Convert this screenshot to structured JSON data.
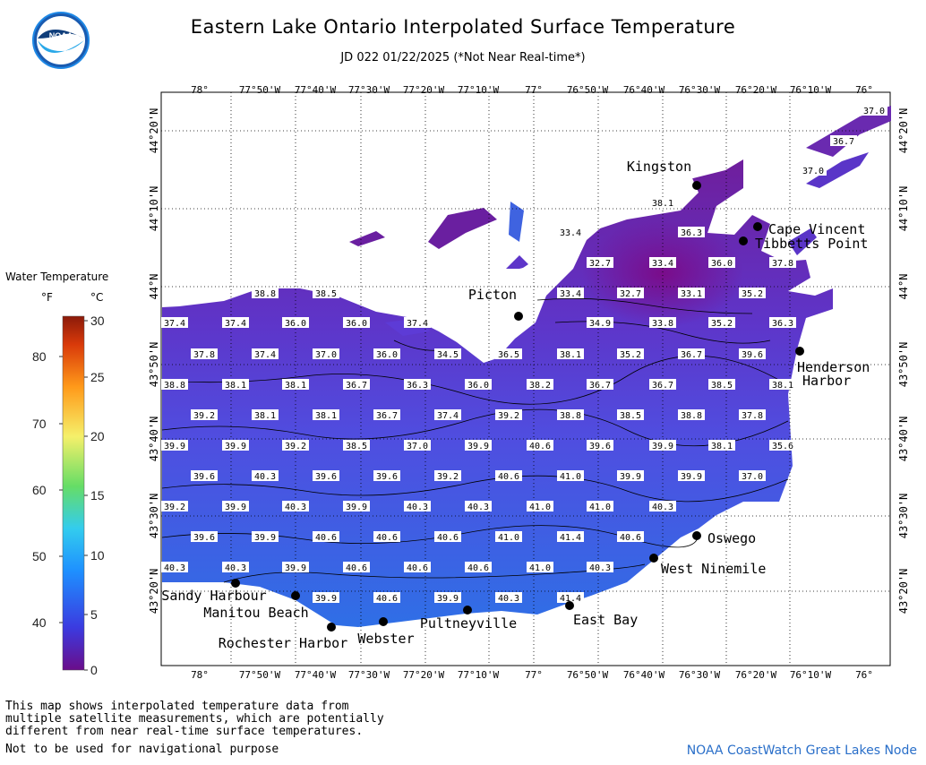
{
  "title": "Eastern Lake Ontario Interpolated Surface Temperature",
  "subtitle": "JD 022 01/22/2025 (*Not Near Real-time*)",
  "logo_text": "NOAA",
  "legend": {
    "title": "Water Temperature",
    "unit_f": "°F",
    "unit_c": "°C",
    "f_ticks": [
      "80",
      "70",
      "60",
      "50",
      "40"
    ],
    "c_ticks": [
      "30",
      "25",
      "20",
      "15",
      "10",
      "5",
      "0"
    ]
  },
  "axes": {
    "lon_labels": [
      "78°",
      "77°50'W",
      "77°40'W",
      "77°30'W",
      "77°20'W",
      "77°10'W",
      "77°",
      "76°50'W",
      "76°40'W",
      "76°30'W",
      "76°20'W",
      "76°10'W",
      "76°"
    ],
    "lat_labels": [
      "44°20'N",
      "44°10'N",
      "44°N",
      "43°50'N",
      "43°40'N",
      "43°30'N",
      "43°20'N"
    ]
  },
  "places": [
    {
      "name": "Kingston"
    },
    {
      "name": "Cape Vincent"
    },
    {
      "name": "Tibbetts Point"
    },
    {
      "name": "Picton"
    },
    {
      "name": "Henderson Harbor"
    },
    {
      "name": "Oswego"
    },
    {
      "name": "West Ninemile"
    },
    {
      "name": "East Bay"
    },
    {
      "name": "Pultneyville"
    },
    {
      "name": "Webster"
    },
    {
      "name": "Rochester Harbor"
    },
    {
      "name": "Manitou Beach"
    },
    {
      "name": "Sandy Harbour"
    }
  ],
  "temperature_labels": [
    "37.0",
    "36.7",
    "37.0",
    "38.1",
    "33.4",
    "36.3",
    "32.7",
    "33.4",
    "36.0",
    "37.8",
    "38.8",
    "38.5",
    "33.4",
    "32.7",
    "33.1",
    "35.2",
    "37.4",
    "37.4",
    "36.0",
    "36.0",
    "37.4",
    "34.9",
    "33.8",
    "35.2",
    "36.3",
    "37.8",
    "37.4",
    "37.0",
    "36.0",
    "34.5",
    "36.5",
    "38.1",
    "35.2",
    "36.7",
    "39.6",
    "38.8",
    "38.1",
    "38.1",
    "36.7",
    "36.3",
    "36.0",
    "38.2",
    "36.7",
    "36.7",
    "38.5",
    "38.1",
    "39.2",
    "38.1",
    "38.1",
    "36.7",
    "37.4",
    "39.2",
    "38.8",
    "38.5",
    "38.8",
    "37.8",
    "39.9",
    "39.9",
    "39.2",
    "38.5",
    "37.0",
    "39.9",
    "40.6",
    "39.6",
    "39.9",
    "38.1",
    "35.6",
    "39.6",
    "40.3",
    "39.6",
    "39.6",
    "39.2",
    "40.6",
    "41.0",
    "39.9",
    "39.9",
    "37.0",
    "39.2",
    "39.9",
    "40.3",
    "39.9",
    "40.3",
    "40.3",
    "41.0",
    "41.0",
    "40.3",
    "39.6",
    "39.9",
    "40.6",
    "40.6",
    "40.6",
    "41.0",
    "41.4",
    "40.6",
    "40.3",
    "40.3",
    "39.9",
    "40.6",
    "40.6",
    "40.6",
    "41.0",
    "40.3",
    "39.9",
    "40.6",
    "39.9",
    "40.3",
    "41.4"
  ],
  "footer": {
    "note_lines": [
      "This map shows interpolated temperature data from",
      "multiple satellite measurements, which are potentially",
      "different from near real-time surface temperatures."
    ],
    "nav": "Not to be used for navigational purpose",
    "credit": "NOAA CoastWatch Great Lakes Node"
  },
  "colors": {
    "cold": "#7a1a9c",
    "mid": "#5b3fd8",
    "warm": "#2f6fe6",
    "scale": [
      "#6a0d8a",
      "#3b3be0",
      "#1e90ff",
      "#33ccee",
      "#66dd66",
      "#f5f06a",
      "#ff9a1a",
      "#d93a0a",
      "#8b1a0a"
    ]
  }
}
